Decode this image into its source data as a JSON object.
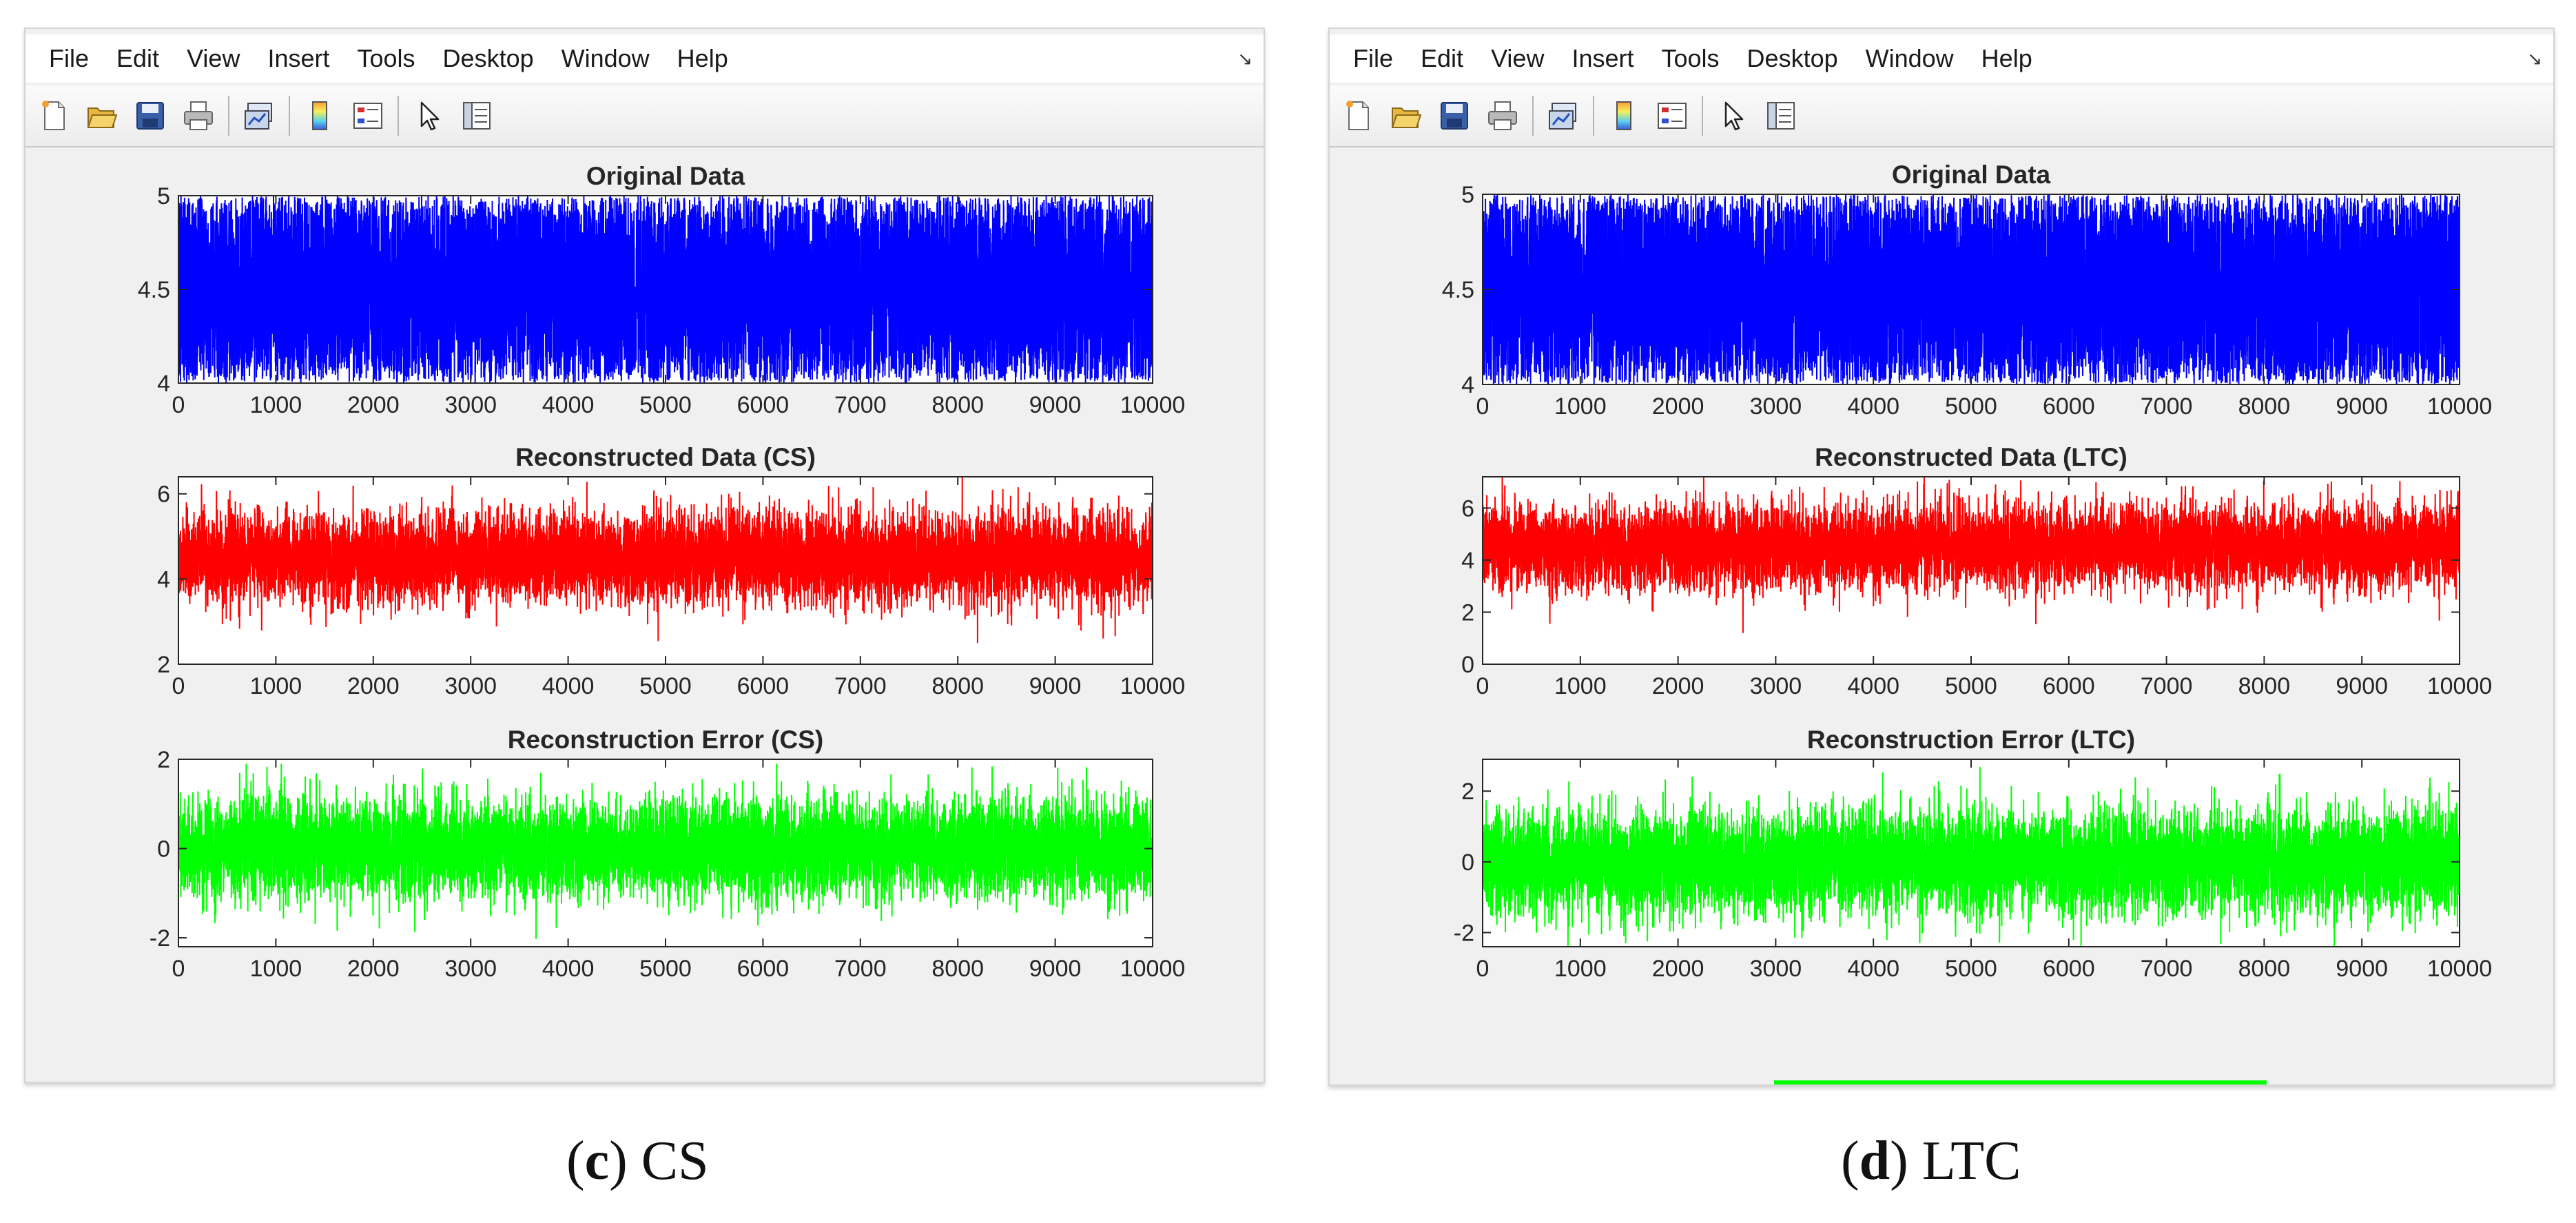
{
  "menu": [
    "File",
    "Edit",
    "View",
    "Insert",
    "Tools",
    "Desktop",
    "Window",
    "Help"
  ],
  "toolbar_icons": [
    "new-figure-icon",
    "open-file-icon",
    "save-icon",
    "print-icon",
    "link-plot-icon",
    "colorbar-icon",
    "legend-icon",
    "pointer-icon",
    "property-inspector-icon"
  ],
  "colors": {
    "original": "#0000ff",
    "reconstructed": "#ff0000",
    "error": "#00ff00"
  },
  "panels": [
    {
      "id": "cs",
      "caption_letter": "c",
      "caption_text": "CS",
      "chart_data": [
        {
          "type": "line",
          "title": "Original Data",
          "xlim": [
            0,
            10000
          ],
          "xticks": [
            0,
            1000,
            2000,
            3000,
            4000,
            5000,
            6000,
            7000,
            8000,
            9000,
            10000
          ],
          "ylim": [
            4,
            5
          ],
          "yticks": [
            4,
            4.5,
            5
          ],
          "series": [
            {
              "color": "#0000ff",
              "n_points": 10000,
              "distribution": "uniform",
              "range": [
                4,
                5
              ]
            }
          ]
        },
        {
          "type": "line",
          "title": "Reconstructed Data (CS)",
          "xlim": [
            0,
            10000
          ],
          "xticks": [
            0,
            1000,
            2000,
            3000,
            4000,
            5000,
            6000,
            7000,
            8000,
            9000,
            10000
          ],
          "ylim": [
            2,
            6.4
          ],
          "yticks": [
            2,
            4,
            6
          ],
          "series": [
            {
              "color": "#ff0000",
              "n_points": 10000,
              "mean": 4.5,
              "range": [
                2.5,
                6.4
              ]
            }
          ]
        },
        {
          "type": "line",
          "title": "Reconstruction Error (CS)",
          "xlim": [
            0,
            10000
          ],
          "xticks": [
            0,
            1000,
            2000,
            3000,
            4000,
            5000,
            6000,
            7000,
            8000,
            9000,
            10000
          ],
          "ylim": [
            -2.2,
            2
          ],
          "yticks": [
            -2,
            0,
            2
          ],
          "series": [
            {
              "color": "#00ff00",
              "n_points": 10000,
              "mean": 0,
              "range": [
                -2.1,
                1.9
              ]
            }
          ]
        }
      ]
    },
    {
      "id": "ltc",
      "caption_letter": "d",
      "caption_text": "LTC",
      "chart_data": [
        {
          "type": "line",
          "title": "Original Data",
          "xlim": [
            0,
            10000
          ],
          "xticks": [
            0,
            1000,
            2000,
            3000,
            4000,
            5000,
            6000,
            7000,
            8000,
            9000,
            10000
          ],
          "ylim": [
            4,
            5
          ],
          "yticks": [
            4,
            4.5,
            5
          ],
          "series": [
            {
              "color": "#0000ff",
              "n_points": 10000,
              "distribution": "uniform",
              "range": [
                4,
                5
              ]
            }
          ]
        },
        {
          "type": "line",
          "title": "Reconstructed Data (LTC)",
          "xlim": [
            0,
            10000
          ],
          "xticks": [
            0,
            1000,
            2000,
            3000,
            4000,
            5000,
            6000,
            7000,
            8000,
            9000,
            10000
          ],
          "ylim": [
            0,
            7.2
          ],
          "yticks": [
            0,
            2,
            4,
            6
          ],
          "series": [
            {
              "color": "#ff0000",
              "n_points": 10000,
              "mean": 4.5,
              "range": [
                1.2,
                7.2
              ]
            }
          ]
        },
        {
          "type": "line",
          "title": "Reconstruction Error (LTC)",
          "xlim": [
            0,
            10000
          ],
          "xticks": [
            0,
            1000,
            2000,
            3000,
            4000,
            5000,
            6000,
            7000,
            8000,
            9000,
            10000
          ],
          "ylim": [
            -2.4,
            2.9
          ],
          "yticks": [
            -2,
            0,
            2
          ],
          "series": [
            {
              "color": "#00ff00",
              "n_points": 10000,
              "mean": 0,
              "range": [
                -2.4,
                2.9
              ]
            }
          ]
        }
      ]
    }
  ]
}
